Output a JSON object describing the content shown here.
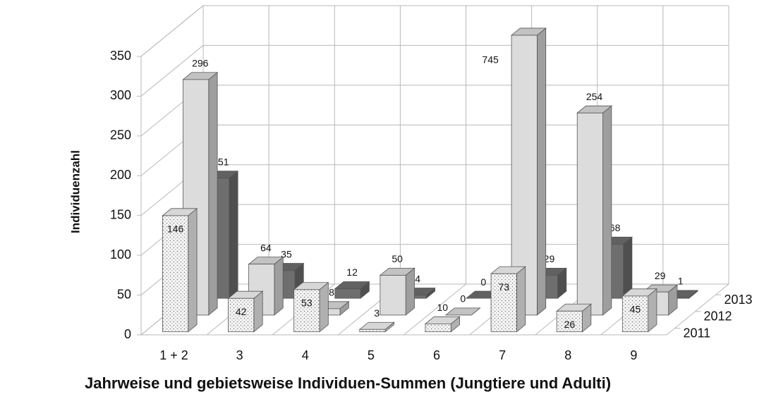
{
  "chart_data": {
    "type": "bar3d",
    "title": "Jahrweise und gebietsweise Individuen-Summen (Jungtiere und Adulti)",
    "y_label": "Individuenzahl",
    "categories": [
      "1 + 2",
      "3",
      "4",
      "5",
      "6",
      "7",
      "8",
      "9"
    ],
    "series": [
      {
        "name": "2011",
        "color": "#f4f4f4",
        "pattern": "dotted",
        "values": [
          146,
          42,
          53,
          3,
          10,
          73,
          26,
          45
        ]
      },
      {
        "name": "2012",
        "color": "#dcdcdc",
        "values": [
          296,
          64,
          8,
          50,
          0,
          745,
          254,
          29
        ]
      },
      {
        "name": "2013",
        "color": "#6e6e6e",
        "values": [
          151,
          35,
          12,
          4,
          0,
          29,
          68,
          1
        ]
      }
    ],
    "ylim": [
      0,
      350
    ],
    "yticks": [
      0,
      50,
      100,
      150,
      200,
      250,
      300,
      350
    ],
    "grid": true
  }
}
